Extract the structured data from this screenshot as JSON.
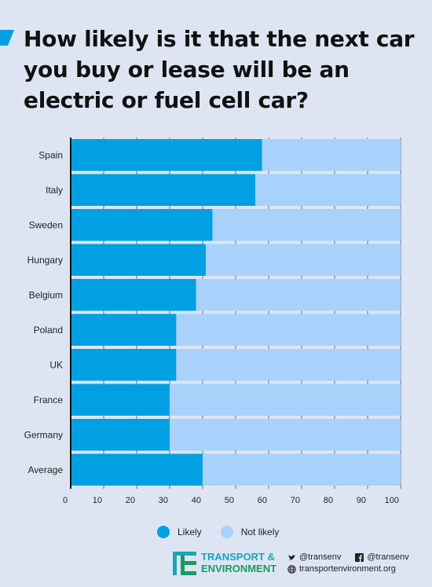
{
  "title": "How likely is it that the next car you buy or lease will be an electric or fuel cell car?",
  "colors": {
    "likely": "#00a0e3",
    "not_likely": "#a8d2fb",
    "background": "#dde5f3"
  },
  "chart_data": {
    "type": "bar",
    "orientation": "horizontal",
    "stacked": true,
    "categories": [
      "Spain",
      "Italy",
      "Sweden",
      "Hungary",
      "Belgium",
      "Poland",
      "UK",
      "France",
      "Germany",
      "Average"
    ],
    "series": [
      {
        "name": "Likely",
        "values": [
          58,
          56,
          43,
          41,
          38,
          32,
          32,
          30,
          30,
          40
        ]
      },
      {
        "name": "Not likely",
        "values": [
          42,
          44,
          57,
          59,
          62,
          68,
          68,
          70,
          70,
          60
        ]
      }
    ],
    "xlim": [
      0,
      100
    ],
    "xticks": [
      "0",
      "10",
      "20",
      "30",
      "40",
      "50",
      "60",
      "70",
      "80",
      "90",
      "100"
    ],
    "grid": "vertical",
    "legend_position": "bottom"
  },
  "legend": {
    "likely": "Likely",
    "not_likely": "Not likely"
  },
  "footer": {
    "logo_line1": "TRANSPORT &",
    "logo_line2": "ENVIRONMENT",
    "twitter": "@transenv",
    "facebook": "@transenv",
    "website": "transportenvironment.org"
  }
}
